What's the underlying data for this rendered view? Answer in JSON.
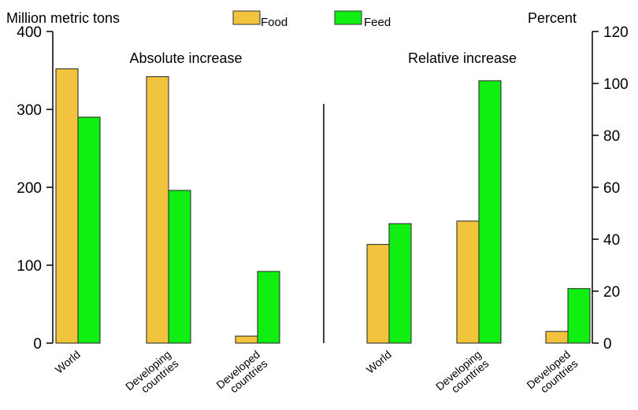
{
  "chart_data": {
    "type": "bar",
    "legend": {
      "position": "top-center",
      "items": [
        {
          "name": "Food",
          "color": "#F2C33C"
        },
        {
          "name": "Feed",
          "color": "#11EE11"
        }
      ]
    },
    "left_axis": {
      "label": "Million metric tons",
      "ylim": [
        0,
        400
      ],
      "ticks": [
        "0",
        "100",
        "200",
        "300",
        "400"
      ]
    },
    "right_axis": {
      "label": "Percent",
      "ylim": [
        0,
        120
      ],
      "ticks": [
        "0",
        "20",
        "40",
        "60",
        "80",
        "100",
        "120"
      ]
    },
    "grid": false,
    "panels": [
      {
        "title": "Absolute increase",
        "axis": "left",
        "categories": [
          [
            "World"
          ],
          [
            "Developing",
            "countries"
          ],
          [
            "Developed",
            "countries"
          ]
        ],
        "series": [
          {
            "name": "Food",
            "values": [
              352,
              342,
              9
            ]
          },
          {
            "name": "Feed",
            "values": [
              290,
              196,
              92
            ]
          }
        ]
      },
      {
        "title": "Relative increase",
        "axis": "right",
        "categories": [
          [
            "World"
          ],
          [
            "Developing",
            "countries"
          ],
          [
            "Developed",
            "countries"
          ]
        ],
        "series": [
          {
            "name": "Food",
            "values": [
              38,
              47,
              4.5
            ]
          },
          {
            "name": "Feed",
            "values": [
              46,
              101,
              21
            ]
          }
        ]
      }
    ]
  }
}
